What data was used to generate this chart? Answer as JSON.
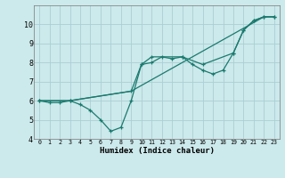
{
  "background_color": "#cce9eb",
  "grid_color": "#aacfd4",
  "line_color": "#1a7a6e",
  "xlim": [
    -0.5,
    23.5
  ],
  "ylim": [
    4,
    11
  ],
  "xlabel": "Humidex (Indice chaleur)",
  "yticks": [
    4,
    5,
    6,
    7,
    8,
    9,
    10
  ],
  "xticks": [
    0,
    1,
    2,
    3,
    4,
    5,
    6,
    7,
    8,
    9,
    10,
    11,
    12,
    13,
    14,
    15,
    16,
    17,
    18,
    19,
    20,
    21,
    22,
    23
  ],
  "series1": {
    "x": [
      0,
      1,
      2,
      3,
      4,
      5,
      6,
      7,
      8,
      9,
      10,
      11,
      12,
      13,
      14,
      15,
      16,
      17,
      18,
      19,
      20,
      21,
      22,
      23
    ],
    "y": [
      6.0,
      5.9,
      5.9,
      6.0,
      5.8,
      5.5,
      5.0,
      4.4,
      4.6,
      6.0,
      7.9,
      8.0,
      8.3,
      8.2,
      8.3,
      7.9,
      7.6,
      7.4,
      7.6,
      8.5,
      9.7,
      10.2,
      10.4,
      10.4
    ]
  },
  "series2": {
    "x": [
      0,
      3,
      9,
      10,
      11,
      14,
      16,
      19,
      20,
      21,
      22,
      23
    ],
    "y": [
      6.0,
      6.0,
      6.5,
      7.9,
      8.3,
      8.3,
      7.9,
      8.5,
      9.7,
      10.2,
      10.4,
      10.4
    ]
  },
  "series3": {
    "x": [
      0,
      3,
      9,
      22,
      23
    ],
    "y": [
      6.0,
      6.0,
      6.5,
      10.4,
      10.4
    ]
  }
}
